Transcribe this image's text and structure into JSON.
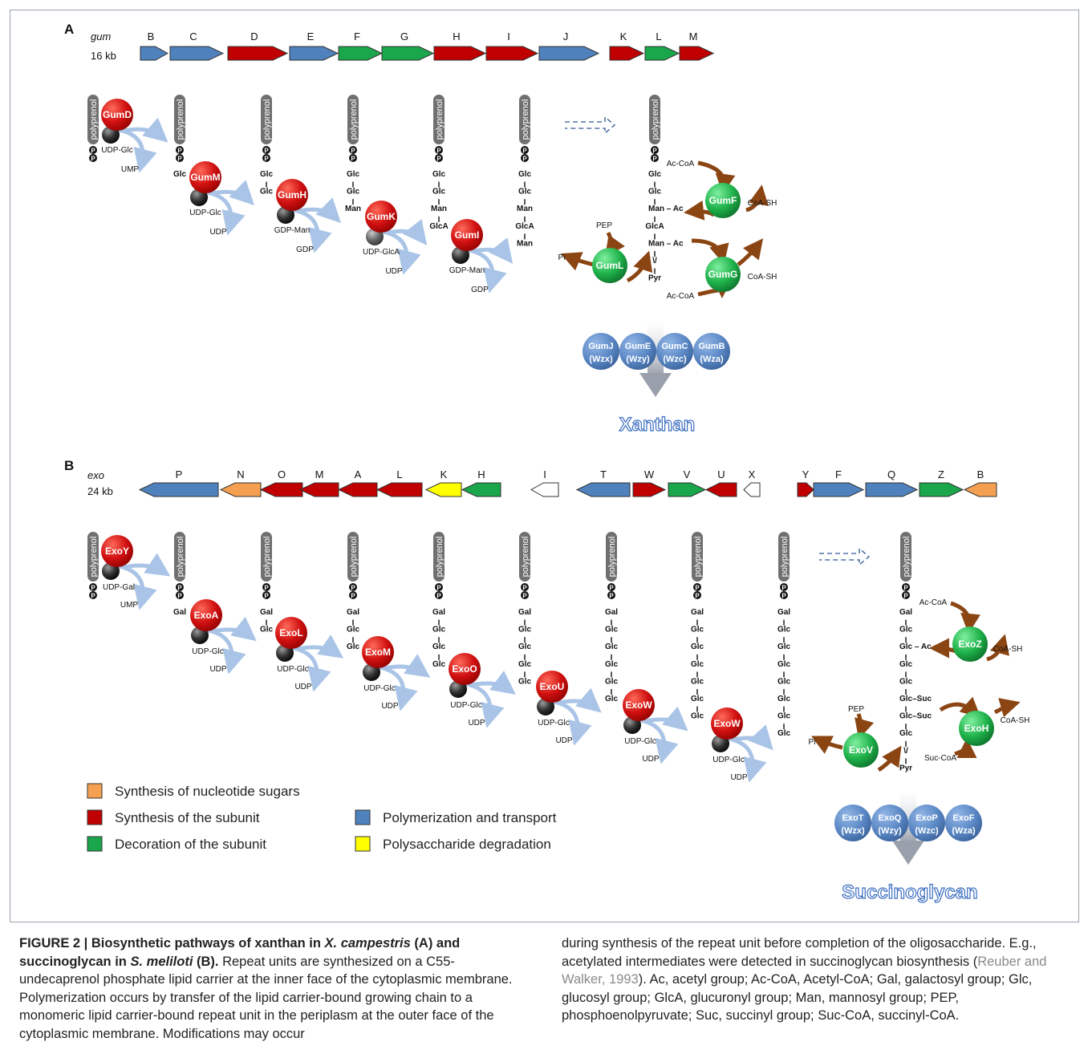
{
  "panel_a": {
    "letter": "A",
    "locus_name": "gum",
    "locus_size": "16 kb",
    "genes": [
      {
        "label": "B",
        "category": "polymerization"
      },
      {
        "label": "C",
        "category": "polymerization"
      },
      {
        "label": "D",
        "category": "subunit"
      },
      {
        "label": "E",
        "category": "polymerization"
      },
      {
        "label": "F",
        "category": "decoration"
      },
      {
        "label": "G",
        "category": "decoration"
      },
      {
        "label": "H",
        "category": "subunit"
      },
      {
        "label": "I",
        "category": "subunit"
      },
      {
        "label": "J",
        "category": "polymerization"
      },
      {
        "label": "K",
        "category": "subunit"
      },
      {
        "label": "L",
        "category": "decoration"
      },
      {
        "label": "M",
        "category": "subunit"
      }
    ],
    "carrier_label": "polyprenol",
    "p_label": "P",
    "steps": [
      {
        "enzyme": "GumD",
        "donor": "UDP-Glc",
        "product": "UMP",
        "chain": []
      },
      {
        "enzyme": "GumM",
        "donor": "UDP-Glc",
        "product": "UDP",
        "chain": [
          "Glc"
        ]
      },
      {
        "enzyme": "GumH",
        "donor": "GDP-Man",
        "product": "GDP",
        "chain": [
          "Glc",
          "Glc"
        ]
      },
      {
        "enzyme": "GumK",
        "donor": "UDP-GlcA",
        "product": "UDP",
        "chain": [
          "Glc",
          "Glc",
          "Man"
        ]
      },
      {
        "enzyme": "GumI",
        "donor": "GDP-Man",
        "product": "GDP",
        "chain": [
          "Glc",
          "Glc",
          "Man",
          "GlcA"
        ]
      },
      {
        "enzyme": "",
        "donor": "",
        "product": "",
        "chain": [
          "Glc",
          "Glc",
          "Man",
          "GlcA",
          "Man"
        ]
      }
    ],
    "final_chain": [
      "Glc",
      "Glc",
      "Man – Ac",
      "GlcA",
      "Man – Ac",
      "\\/",
      "Pyr"
    ],
    "decorations": [
      {
        "enzyme": "GumF",
        "substrate": "Ac-CoA",
        "product": "CoA-SH"
      },
      {
        "enzyme": "GumG",
        "substrate": "Ac-CoA",
        "product": "CoA-SH"
      },
      {
        "enzyme": "GumL",
        "substrate": "PEP",
        "product": "Pi"
      }
    ],
    "transport": [
      {
        "name": "GumJ",
        "alias": "(Wzx)"
      },
      {
        "name": "GumE",
        "alias": "(Wzy)"
      },
      {
        "name": "GumC",
        "alias": "(Wzc)"
      },
      {
        "name": "GumB",
        "alias": "(Wza)"
      }
    ],
    "polymer": "Xanthan"
  },
  "panel_b": {
    "letter": "B",
    "locus_name": "exo",
    "locus_size": "24 kb",
    "genes": [
      {
        "label": "P",
        "category": "polymerization"
      },
      {
        "label": "N",
        "category": "nucleotide"
      },
      {
        "label": "O",
        "category": "subunit"
      },
      {
        "label": "M",
        "category": "subunit"
      },
      {
        "label": "A",
        "category": "subunit"
      },
      {
        "label": "L",
        "category": "subunit"
      },
      {
        "label": "K",
        "category": "degradation"
      },
      {
        "label": "H",
        "category": "decoration"
      },
      {
        "label": "I",
        "category": "none"
      },
      {
        "label": "T",
        "category": "polymerization"
      },
      {
        "label": "W",
        "category": "subunit"
      },
      {
        "label": "V",
        "category": "decoration"
      },
      {
        "label": "U",
        "category": "subunit"
      },
      {
        "label": "X",
        "category": "none"
      },
      {
        "label": "Y",
        "category": "subunit"
      },
      {
        "label": "F",
        "category": "polymerization"
      },
      {
        "label": "Q",
        "category": "polymerization"
      },
      {
        "label": "Z",
        "category": "decoration"
      },
      {
        "label": "B",
        "category": "nucleotide"
      }
    ],
    "steps": [
      {
        "enzyme": "ExoY",
        "donor": "UDP-Gal",
        "product": "UMP",
        "chain": []
      },
      {
        "enzyme": "ExoA",
        "donor": "UDP-Glc",
        "product": "UDP",
        "chain": [
          "Gal"
        ]
      },
      {
        "enzyme": "ExoL",
        "donor": "UDP-Glc",
        "product": "UDP",
        "chain": [
          "Gal",
          "Glc"
        ]
      },
      {
        "enzyme": "ExoM",
        "donor": "UDP-Glc",
        "product": "UDP",
        "chain": [
          "Gal",
          "Glc",
          "Glc"
        ]
      },
      {
        "enzyme": "ExoO",
        "donor": "UDP-Glc",
        "product": "UDP",
        "chain": [
          "Gal",
          "Glc",
          "Glc",
          "Glc"
        ]
      },
      {
        "enzyme": "ExoU",
        "donor": "UDP-Glc",
        "product": "UDP",
        "chain": [
          "Gal",
          "Glc",
          "Glc",
          "Glc",
          "Glc"
        ]
      },
      {
        "enzyme": "ExoW",
        "donor": "UDP-Glc",
        "product": "UDP",
        "chain": [
          "Gal",
          "Glc",
          "Glc",
          "Glc",
          "Glc",
          "Glc"
        ]
      },
      {
        "enzyme": "ExoW",
        "donor": "UDP-Glc",
        "product": "UDP",
        "chain": [
          "Gal",
          "Glc",
          "Glc",
          "Glc",
          "Glc",
          "Glc",
          "Glc"
        ]
      },
      {
        "enzyme": "",
        "donor": "",
        "product": "",
        "chain": [
          "Gal",
          "Glc",
          "Glc",
          "Glc",
          "Glc",
          "Glc",
          "Glc",
          "Glc"
        ]
      }
    ],
    "final_chain": [
      "Gal",
      "Glc",
      "Glc – Ac",
      "Glc",
      "Glc",
      "Glc–Suc",
      "Glc–Suc",
      "Glc",
      "\\/",
      "Pyr"
    ],
    "decorations": [
      {
        "enzyme": "ExoZ",
        "substrate": "Ac-CoA",
        "product": "CoA-SH"
      },
      {
        "enzyme": "ExoH",
        "substrate": "Suc-CoA",
        "product": "CoA-SH"
      },
      {
        "enzyme": "ExoV",
        "substrate": "PEP",
        "product": "Pi"
      }
    ],
    "transport": [
      {
        "name": "ExoT",
        "alias": "(Wzx)"
      },
      {
        "name": "ExoQ",
        "alias": "(Wzy)"
      },
      {
        "name": "ExoP",
        "alias": "(Wzc)"
      },
      {
        "name": "ExoF",
        "alias": "(Wza)"
      }
    ],
    "polymer": "Succinoglycan"
  },
  "legend": [
    {
      "key": "nucleotide",
      "label": "Synthesis of nucleotide sugars",
      "color": "#f4a050"
    },
    {
      "key": "subunit",
      "label": "Synthesis of the subunit",
      "color": "#c00000"
    },
    {
      "key": "decoration",
      "label": "Decoration of the subunit",
      "color": "#1aa64a"
    },
    {
      "key": "polymerization",
      "label": "Polymerization and transport",
      "color": "#4f81bd"
    },
    {
      "key": "degradation",
      "label": "Polysaccharide degradation",
      "color": "#ffff00"
    }
  ],
  "colors": {
    "enzyme_red": "#cc1111",
    "enzyme_green": "#1fb24a",
    "transporter_blue": "#4f7fc0",
    "brown_arrow": "#8b4513",
    "light_arrow": "#a9c4e6",
    "polymer_text": "#3c6ec0",
    "carrier_grey": "#707070",
    "none": "#ffffff"
  },
  "caption": {
    "figure_label": "FIGURE 2 | Biosynthetic pathways of xanthan in ",
    "org_a": "X. campestris",
    "mid1": " (A) and succinoglycan in ",
    "org_b": "S. meliloti",
    "mid2": " (B).",
    "text_left": " Repeat units are synthesized on a C55-undecaprenol phosphate lipid carrier at the inner face of the cytoplasmic membrane. Polymerization occurs by transfer of the lipid carrier-bound growing chain to a monomeric lipid carrier-bound repeat unit in the periplasm at the outer face of the cytoplasmic membrane. Modifications may occur",
    "text_right_1": "during synthesis of the repeat unit before completion of the oligosaccharide. E.g., acetylated intermediates were detected in succinoglycan biosynthesis (",
    "citation": "Reuber and Walker, 1993",
    "text_right_2": "). Ac, acetyl group; Ac-CoA, Acetyl-CoA; Gal, galactosyl group; Glc, glucosyl group; GlcA, glucuronyl group; Man, mannosyl group; PEP, phosphoenolpyruvate; Suc, succinyl group; Suc-CoA, succinyl-CoA."
  }
}
